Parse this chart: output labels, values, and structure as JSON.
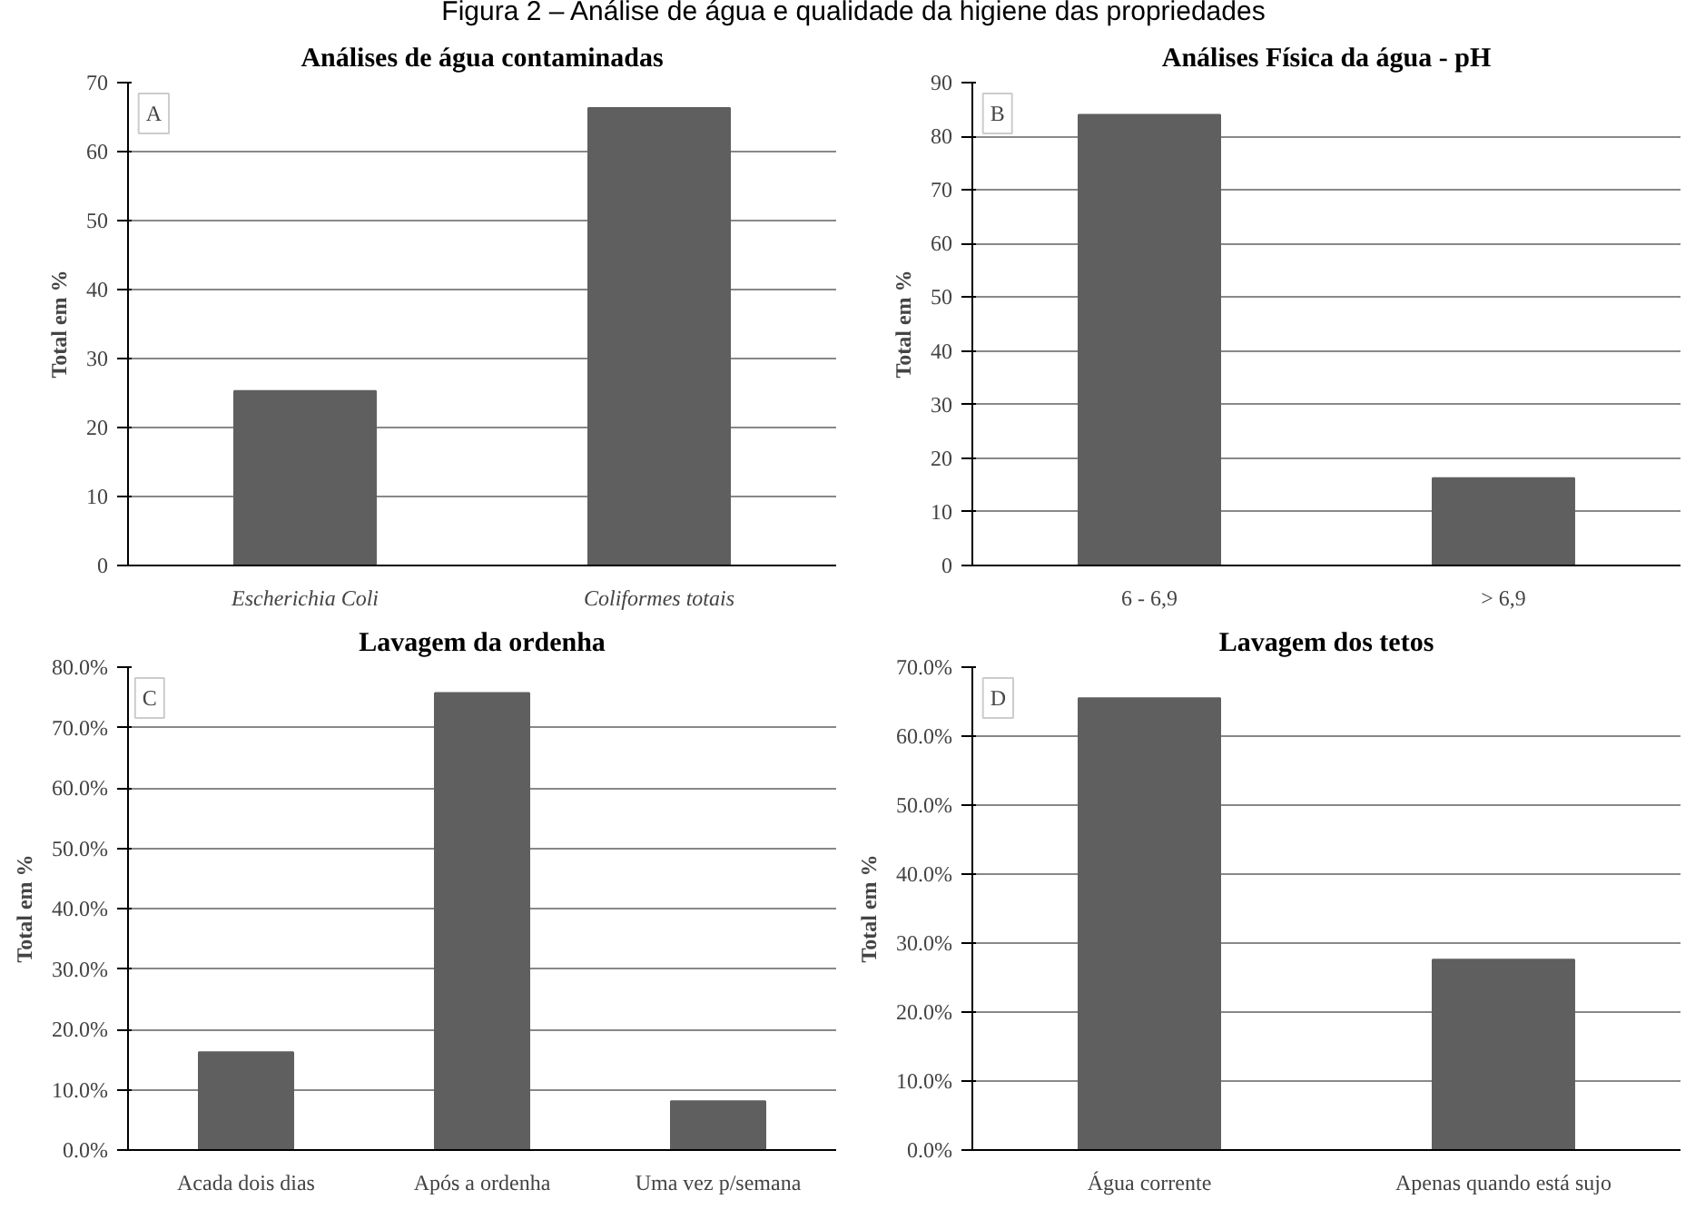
{
  "chart_data": [
    {
      "type": "bar",
      "title": "Análises de água contaminadas",
      "ylabel": "Total em %",
      "categories": [
        "Escherichia Coli",
        "Coliformes totais"
      ],
      "values": [
        25.3,
        66.3
      ],
      "color": "#5f5f5f",
      "ylim": [
        0,
        70
      ],
      "yticks": [
        0,
        10,
        20,
        30,
        40,
        50,
        60,
        70
      ],
      "grid": "y",
      "annotations": [
        "A",
        "Figura 2 – Análise de água e qualidade da higiene das propriedades"
      ]
    },
    {
      "type": "bar",
      "title": "Análises Física da água - pH",
      "ylabel": "Total em %",
      "categories": [
        "6 - 6,9",
        "> 6,9"
      ],
      "values": [
        84,
        16.3
      ],
      "color": "#5f5f5f",
      "ylim": [
        0,
        90
      ],
      "yticks": [
        0,
        10,
        20,
        30,
        40,
        50,
        60,
        70,
        80,
        90
      ],
      "grid": "y",
      "annotations": [
        "B"
      ]
    },
    {
      "type": "bar",
      "title": "Lavagem da ordenha",
      "ylabel": "Total em %",
      "categories": [
        "Acada dois dias",
        "Após a ordenha",
        "Uma vez p/semana"
      ],
      "values": [
        16.2,
        75.7,
        8.1
      ],
      "color": "#5f5f5f",
      "ylim": [
        0,
        80
      ],
      "yticks": [
        {
          "value": 0,
          "label": "0.0%"
        },
        {
          "value": 10,
          "label": "10.0%"
        },
        {
          "value": 20,
          "label": "20.0%"
        },
        {
          "value": 30,
          "label": "30.0%"
        },
        {
          "value": 40,
          "label": "40.0%"
        },
        {
          "value": 50,
          "label": "50.0%"
        },
        {
          "value": 60,
          "label": "60.0%"
        },
        {
          "value": 70,
          "label": "70.0%"
        },
        {
          "value": 80,
          "label": "80.0%"
        }
      ],
      "grid": "y",
      "annotations": [
        "C"
      ]
    },
    {
      "type": "bar",
      "title": "Lavagem dos tetos",
      "ylabel": "Total em %",
      "categories": [
        "Água corrente",
        "Apenas quando está sujo"
      ],
      "values": [
        65.5,
        27.6
      ],
      "color": "#5f5f5f",
      "ylim": [
        0,
        70
      ],
      "yticks": [
        {
          "value": 0,
          "label": "0.0%"
        },
        {
          "value": 10,
          "label": "10.0%"
        },
        {
          "value": 20,
          "label": "20.0%"
        },
        {
          "value": 30,
          "label": "30.0%"
        },
        {
          "value": 40,
          "label": "40.0%"
        },
        {
          "value": 50,
          "label": "50.0%"
        },
        {
          "value": 60,
          "label": "60.0%"
        },
        {
          "value": 70,
          "label": "70.0%"
        }
      ],
      "grid": "y",
      "annotations": [
        "D"
      ]
    }
  ]
}
